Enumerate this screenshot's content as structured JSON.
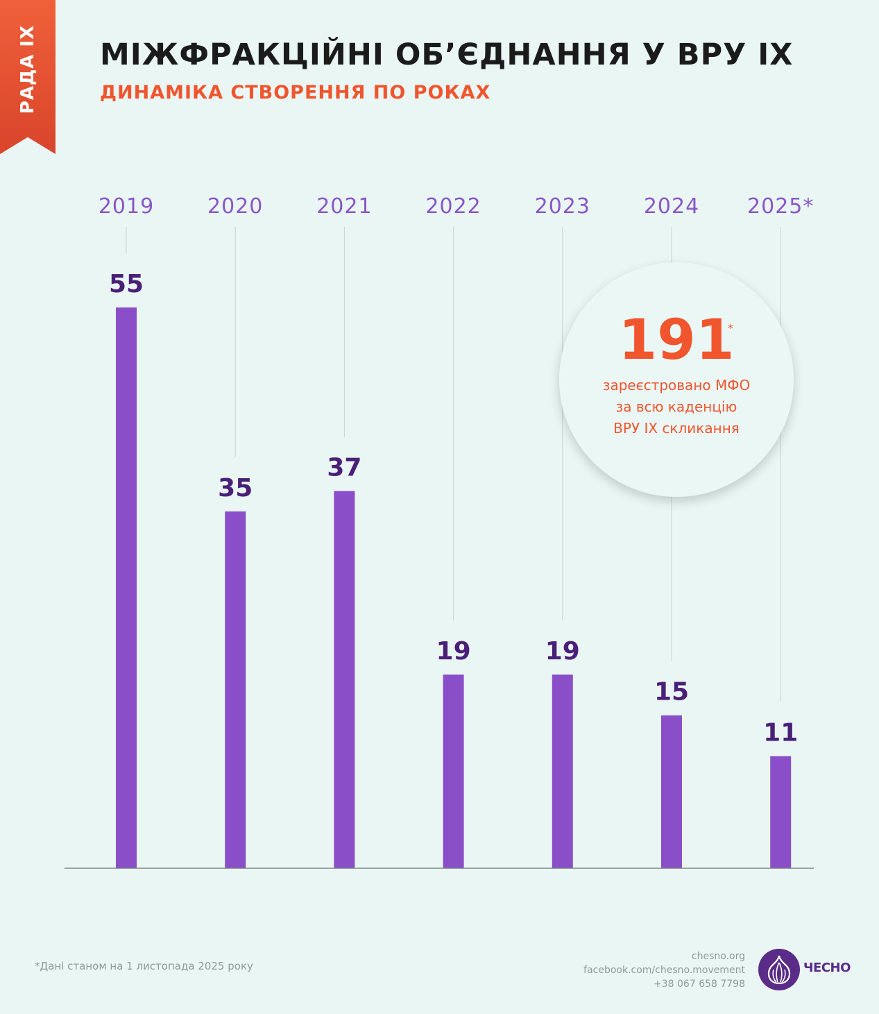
{
  "ribbon": "РАДА ІХ",
  "title": "МІЖФРАКЦІЙНІ ОБ’ЄДНАННЯ У ВРУ ІХ",
  "subtitle": "ДИНАМІКА СТВОРЕННЯ ПО РОКАХ",
  "chart_data": {
    "type": "bar",
    "categories": [
      "2019",
      "2020",
      "2021",
      "2022",
      "2023",
      "2024",
      "2025*"
    ],
    "values": [
      55,
      35,
      37,
      19,
      19,
      15,
      11
    ],
    "title": "МІЖФРАКЦІЙНІ ОБ’ЄДНАННЯ У ВРУ ІХ",
    "subtitle": "ДИНАМІКА СТВОРЕННЯ ПО РОКАХ",
    "xlabel": "",
    "ylabel": "",
    "ylim": [
      0,
      55
    ],
    "grid": false,
    "data_labels": true
  },
  "colors": {
    "bar": "#8a4fc8",
    "value_label": "#4a1f78",
    "year_label": "#8a56c8",
    "accent": "#f0552e",
    "background": "#e9f6f4"
  },
  "summary": {
    "number": "191",
    "star": "*",
    "lines": [
      "зареєстровано МФО",
      "за всю каденцію",
      "ВРУ IX скликання"
    ]
  },
  "footnote": "*Дані станом на 1 листопада 2025 року",
  "contacts": [
    "chesno.org",
    "facebook.com/chesno.movement",
    "+38 067 658 7798"
  ],
  "logo": {
    "text": "ЧЕСНО",
    "icon": "garlic-icon"
  }
}
